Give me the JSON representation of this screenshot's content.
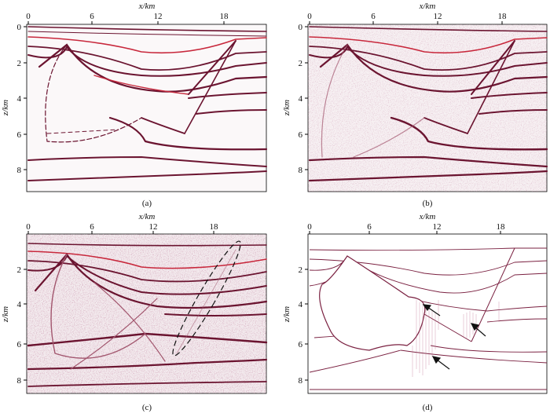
{
  "panels": [
    {
      "id": "a",
      "caption": "(a)",
      "xlabel": "x/km",
      "ylabel": "z/km",
      "xticks": [
        "0",
        "6",
        "12",
        "18"
      ],
      "yticks": [
        "0",
        "2",
        "4",
        "6",
        "8"
      ]
    },
    {
      "id": "b",
      "caption": "(b)",
      "xlabel": "x/km",
      "ylabel": "z/km",
      "xticks": [
        "0",
        "6",
        "12",
        "18"
      ],
      "yticks": [
        "0",
        "2",
        "4",
        "6",
        "8"
      ]
    },
    {
      "id": "c",
      "caption": "(c)",
      "xlabel": "x/km",
      "ylabel": "z/km",
      "xticks": [
        "0",
        "6",
        "12",
        "18"
      ],
      "yticks": [
        "2",
        "4",
        "6",
        "8"
      ]
    },
    {
      "id": "d",
      "caption": "(d)",
      "xlabel": "x/km",
      "ylabel": "z/km",
      "xticks": [
        "0",
        "6",
        "12",
        "18"
      ],
      "yticks": [
        "2",
        "4",
        "6",
        "8"
      ]
    }
  ],
  "axes": {
    "x_range_km": [
      0,
      22.5
    ],
    "z_range_km": [
      0,
      9.2
    ]
  },
  "colors": {
    "reflector_dark": "#6b1430",
    "reflector_red": "#c8283c",
    "reflector_blue": "#3e4f8c",
    "noise": "#a2566e",
    "axis": "#000000"
  }
}
